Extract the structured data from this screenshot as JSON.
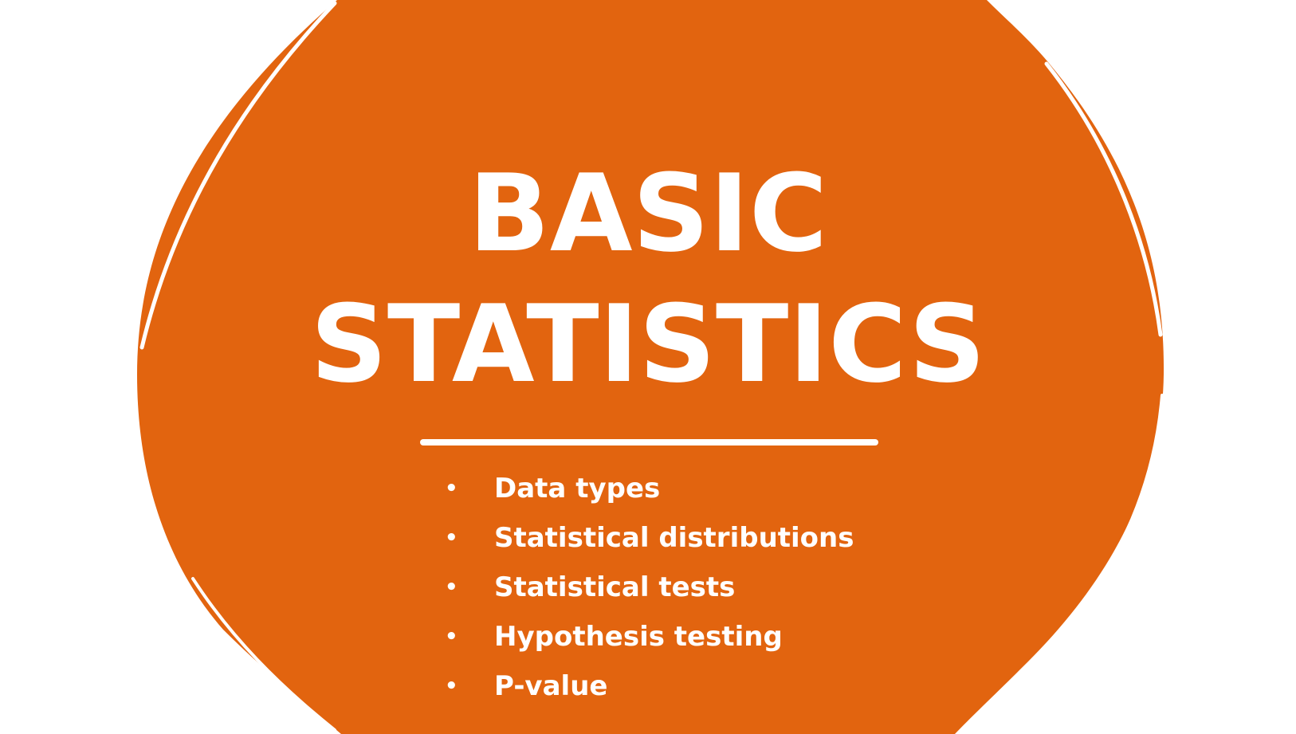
{
  "slide": {
    "title_line_1": "BASIC",
    "title_line_2": "STATISTICS",
    "bullet_glyph": "•",
    "bullets": [
      "Data types",
      "Statistical distributions",
      "Statistical tests",
      "Hypothesis testing",
      "P-value"
    ]
  },
  "colors": {
    "background": "#ffffff",
    "shape_fill": "#e2640f",
    "text": "#ffffff"
  }
}
